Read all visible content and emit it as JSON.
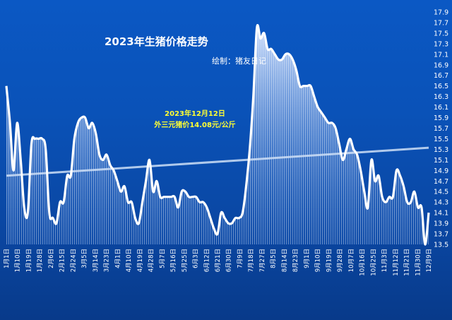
{
  "chart_data": {
    "type": "area",
    "title": "2023年生猪价格走势",
    "credit": "绘制：猪友日记",
    "annotation": [
      "2023年12月12日",
      "外三元猪价14.08元/公斤"
    ],
    "ylim": [
      13.5,
      17.9
    ],
    "yticks": [
      "13.5",
      "13.7",
      "13.9",
      "14.1",
      "14.3",
      "14.5",
      "14.7",
      "14.9",
      "15.1",
      "15.3",
      "15.5",
      "15.7",
      "15.9",
      "16.1",
      "16.3",
      "16.5",
      "16.7",
      "16.9",
      "17.1",
      "17.3",
      "17.5",
      "17.7",
      "17.9"
    ],
    "xticks": [
      "1月1日",
      "1月10日",
      "1月19日",
      "1月28日",
      "2月6日",
      "2月15日",
      "2月24日",
      "3月5日",
      "3月14日",
      "3月23日",
      "4月1日",
      "4月10日",
      "4月19日",
      "4月28日",
      "5月7日",
      "5月16日",
      "5月25日",
      "6月3日",
      "6月12日",
      "6月21日",
      "6月30日",
      "7月9日",
      "7月18日",
      "7月27日",
      "8月5日",
      "8月14日",
      "8月23日",
      "9月1日",
      "9月10日",
      "9月19日",
      "9月28日",
      "10月7日",
      "10月16日",
      "10月25日",
      "11月3日",
      "11月12日",
      "11月21日",
      "11月30日",
      "12月9日"
    ],
    "trend": {
      "start": 14.8,
      "end": 15.33
    },
    "colors": {
      "line": "#ffffff",
      "fill_top": "#d8e6ff",
      "fill_bottom": "#1e5fc2",
      "annotation": "#ffff33"
    },
    "series": [
      {
        "values": [
          16.5,
          15.8,
          14.9,
          15.8,
          15.1,
          14.2,
          14.1,
          15.4,
          15.5,
          15.5,
          15.5,
          15.3,
          14.1,
          14.0,
          13.9,
          14.3,
          14.3,
          14.8,
          14.8,
          15.5,
          15.8,
          15.9,
          15.9,
          15.7,
          15.8,
          15.6,
          15.2,
          15.1,
          15.2,
          15.0,
          14.9,
          14.7,
          14.5,
          14.6,
          14.3,
          14.3,
          14.0,
          13.9,
          14.3,
          14.7,
          15.1,
          14.5,
          14.7,
          14.4,
          14.4,
          14.4,
          14.4,
          14.4,
          14.2,
          14.5,
          14.5,
          14.4,
          14.4,
          14.4,
          14.3,
          14.3,
          14.2,
          14.0,
          13.8,
          13.7,
          14.1,
          14.0,
          13.9,
          13.9,
          14.0,
          14.0,
          14.1,
          14.6,
          15.3,
          16.3,
          17.6,
          17.4,
          17.5,
          17.2,
          17.2,
          17.1,
          17.0,
          17.0,
          17.1,
          17.1,
          17.0,
          16.8,
          16.5,
          16.5,
          16.5,
          16.5,
          16.3,
          16.1,
          16.0,
          15.9,
          15.8,
          15.8,
          15.7,
          15.4,
          15.1,
          15.3,
          15.5,
          15.3,
          15.2,
          14.9,
          14.5,
          14.2,
          15.1,
          14.7,
          14.8,
          14.4,
          14.3,
          14.4,
          14.4,
          14.9,
          14.8,
          14.6,
          14.3,
          14.3,
          14.5,
          14.2,
          14.2,
          13.5,
          14.1
        ]
      }
    ]
  }
}
